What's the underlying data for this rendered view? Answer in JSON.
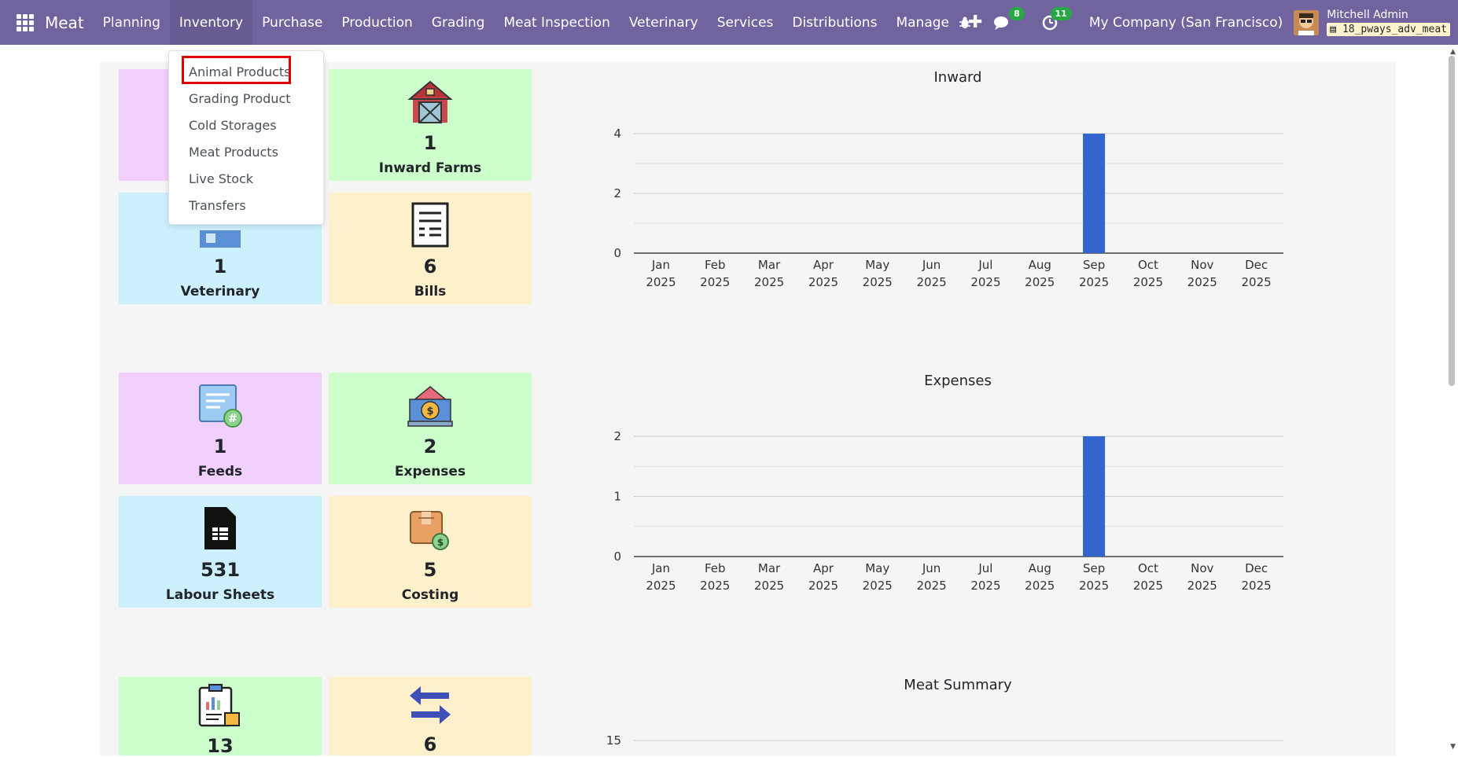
{
  "navbar": {
    "brand": "Meat",
    "menu": [
      "Planning",
      "Inventory",
      "Purchase",
      "Production",
      "Grading",
      "Meat Inspection",
      "Veterinary",
      "Services",
      "Distributions",
      "Manage"
    ],
    "plus": "✚",
    "chat_badge": "8",
    "activity_badge": "11",
    "company": "My Company (San Francisco)",
    "user": "Mitchell Admin",
    "db": "18_pways_adv_meat"
  },
  "dropdown": {
    "items": [
      "Animal Products",
      "Grading Product",
      "Cold Storages",
      "Meat Products",
      "Live Stock",
      "Transfers"
    ]
  },
  "tiles": [
    {
      "count": "",
      "label": "",
      "icon": "hidden-icon"
    },
    {
      "count": "1",
      "label": "Inward Farms",
      "icon": "barn-icon"
    },
    {
      "count": "1",
      "label": "Veterinary",
      "icon": "veterinary-icon"
    },
    {
      "count": "6",
      "label": "Bills",
      "icon": "document-icon"
    },
    {
      "count": "1",
      "label": "Feeds",
      "icon": "feed-icon"
    },
    {
      "count": "2",
      "label": "Expenses",
      "icon": "expense-icon"
    },
    {
      "count": "531",
      "label": "Labour Sheets",
      "icon": "sheet-icon"
    },
    {
      "count": "5",
      "label": "Costing",
      "icon": "costing-icon"
    },
    {
      "count": "13",
      "label": "",
      "icon": "report-icon"
    },
    {
      "count": "6",
      "label": "",
      "icon": "transfer-icon"
    }
  ],
  "colors": {
    "navbar": "#71639e",
    "bar": "#3366cc"
  },
  "chart_data": [
    {
      "type": "bar",
      "title": "Inward",
      "categories": [
        "Jan 2025",
        "Feb 2025",
        "Mar 2025",
        "Apr 2025",
        "May 2025",
        "Jun 2025",
        "Jul 2025",
        "Aug 2025",
        "Sep 2025",
        "Oct 2025",
        "Nov 2025",
        "Dec 2025"
      ],
      "values": [
        0,
        0,
        0,
        0,
        0,
        0,
        0,
        0,
        4,
        0,
        0,
        0
      ],
      "yticks": [
        "0",
        "2",
        "4"
      ],
      "ylim": [
        0,
        4
      ]
    },
    {
      "type": "bar",
      "title": "Expenses",
      "categories": [
        "Jan 2025",
        "Feb 2025",
        "Mar 2025",
        "Apr 2025",
        "May 2025",
        "Jun 2025",
        "Jul 2025",
        "Aug 2025",
        "Sep 2025",
        "Oct 2025",
        "Nov 2025",
        "Dec 2025"
      ],
      "values": [
        0,
        0,
        0,
        0,
        0,
        0,
        0,
        0,
        2,
        0,
        0,
        0
      ],
      "yticks": [
        "0",
        "1",
        "2"
      ],
      "ylim": [
        0,
        2
      ]
    },
    {
      "type": "bar",
      "title": "Meat Summary",
      "categories": [],
      "values": [],
      "yticks": [
        "15"
      ],
      "ylim": [
        0,
        15
      ]
    }
  ]
}
